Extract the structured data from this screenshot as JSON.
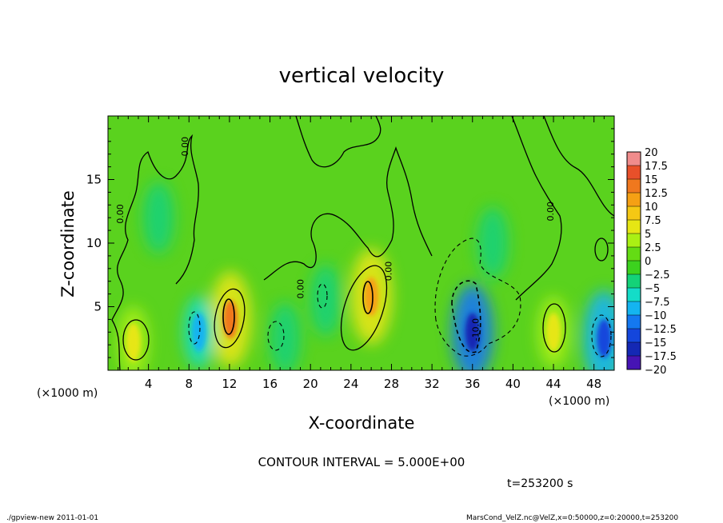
{
  "chart_data": {
    "type": "heatmap",
    "title": "vertical velocity",
    "xlabel": "X-coordinate",
    "ylabel": "Z-coordinate",
    "x_unit": "(×1000 m)",
    "x_unit_right": "(×1000 m)",
    "xlim": [
      0,
      50
    ],
    "ylim": [
      0,
      20
    ],
    "x_ticks": [
      4,
      8,
      12,
      16,
      20,
      24,
      28,
      32,
      36,
      40,
      44,
      48
    ],
    "y_ticks": [
      5,
      10,
      15
    ],
    "colorbar": {
      "levels": [
        20,
        17.5,
        15,
        12.5,
        10,
        7.5,
        5,
        2.5,
        0,
        -2.5,
        -5,
        -7.5,
        -10,
        -12.5,
        -15,
        -17.5,
        -20
      ],
      "labels": [
        "20",
        "17.5",
        "15",
        "12.5",
        "10",
        "7.5",
        "5",
        "2.5",
        "0",
        "−2.5",
        "−5",
        "−7.5",
        "−10",
        "−12.5",
        "−15",
        "−17.5",
        "−20"
      ],
      "colors": [
        "#f08c8c",
        "#e8502a",
        "#f0781e",
        "#f5a014",
        "#f5c814",
        "#e6e614",
        "#aaf014",
        "#64dc14",
        "#3cd21e",
        "#14d278",
        "#14dcc8",
        "#14b4f0",
        "#1478f0",
        "#1446dc",
        "#1428b4",
        "#4614b4",
        "#7814b4"
      ]
    },
    "features": [
      {
        "x": 2.5,
        "z": 2.2,
        "value": 8
      },
      {
        "x": 12.1,
        "z": 4.0,
        "value": 14
      },
      {
        "x": 26.0,
        "z": 5.8,
        "value": 13
      },
      {
        "x": 36.0,
        "z": 3.0,
        "value": -16
      },
      {
        "x": 44.0,
        "z": 3.0,
        "value": 8
      },
      {
        "x": 49.0,
        "z": 2.5,
        "value": -12
      },
      {
        "x": 9.0,
        "z": 3.0,
        "value": -7
      },
      {
        "x": 17.5,
        "z": 2.5,
        "value": -6
      },
      {
        "x": 21.5,
        "z": 5.5,
        "value": -6
      },
      {
        "x": 5.0,
        "z": 12.0,
        "value": -3
      },
      {
        "x": 38.0,
        "z": 10.0,
        "value": -3
      }
    ],
    "contour_labels": [
      {
        "x": 1.5,
        "z": 12.3,
        "text": "0.00"
      },
      {
        "x": 7.9,
        "z": 17.6,
        "text": "0.00"
      },
      {
        "x": 19.3,
        "z": 6.4,
        "text": "0.00"
      },
      {
        "x": 28.0,
        "z": 7.8,
        "text": "0.00"
      },
      {
        "x": 36.6,
        "z": 3.2,
        "text": "-10.0"
      },
      {
        "x": 44.0,
        "z": 12.5,
        "text": "0.00"
      }
    ]
  },
  "contour_interval": "CONTOUR INTERVAL = 5.000E+00",
  "time_label": "t=253200  s",
  "footer_left": "./gpview-new   2011-01-01",
  "footer_right": "MarsCond_VelZ.nc@VelZ,x=0:50000,z=0:20000,t=253200"
}
